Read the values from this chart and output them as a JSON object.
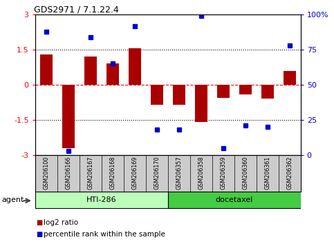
{
  "title": "GDS2971 / 7.1.22.4",
  "samples": [
    "GSM206100",
    "GSM206166",
    "GSM206167",
    "GSM206168",
    "GSM206169",
    "GSM206170",
    "GSM206357",
    "GSM206358",
    "GSM206359",
    "GSM206360",
    "GSM206361",
    "GSM206362"
  ],
  "log2_ratio": [
    1.3,
    -2.7,
    1.2,
    0.9,
    1.55,
    -0.85,
    -0.85,
    -1.6,
    -0.55,
    -0.4,
    -0.6,
    0.6
  ],
  "percentile": [
    88,
    3,
    84,
    65,
    92,
    18,
    18,
    99,
    5,
    21,
    20,
    78
  ],
  "bar_color": "#aa0000",
  "dot_color": "#0000cc",
  "groups": [
    {
      "label": "HTI-286",
      "start": 0,
      "end": 5,
      "color": "#bbffbb"
    },
    {
      "label": "docetaxel",
      "start": 6,
      "end": 11,
      "color": "#44cc44"
    }
  ],
  "ylim": [
    -3,
    3
  ],
  "yticks_left": [
    -3,
    -1.5,
    0,
    1.5,
    3
  ],
  "yticks_right": [
    0,
    25,
    50,
    75,
    100
  ],
  "agent_label": "agent",
  "legend_bar_label": "log2 ratio",
  "legend_dot_label": "percentile rank within the sample"
}
